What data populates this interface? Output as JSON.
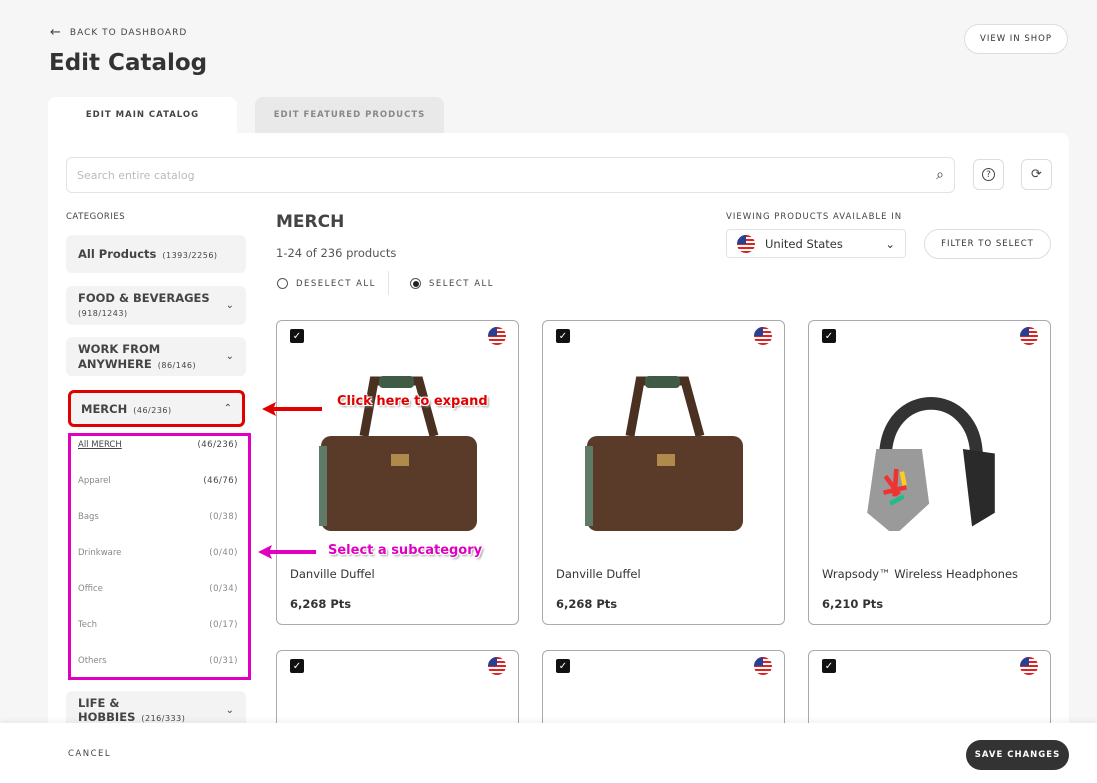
{
  "header": {
    "back_label": "BACK TO DASHBOARD",
    "title": "Edit Catalog",
    "view_in_shop": "VIEW IN SHOP"
  },
  "tabs": [
    {
      "label": "EDIT MAIN CATALOG",
      "active": true
    },
    {
      "label": "EDIT FEATURED PRODUCTS",
      "active": false
    }
  ],
  "search": {
    "placeholder": "Search entire catalog"
  },
  "sidebar": {
    "heading": "CATEGORIES",
    "categories": [
      {
        "label": "All Products",
        "count": "(1393/2256)"
      },
      {
        "label": "FOOD & BEVERAGES",
        "count": "(918/1243)"
      },
      {
        "label": "WORK FROM ANYWHERE",
        "count": "(86/146)"
      },
      {
        "label": "MERCH",
        "count": "(46/236)"
      },
      {
        "label": "LIFE & HOBBIES",
        "count": "(216/333)"
      }
    ],
    "subcategories": [
      {
        "label": "All MERCH",
        "count": "(46/236)"
      },
      {
        "label": "Apparel",
        "count": "(46/76)"
      },
      {
        "label": "Bags",
        "count": "(0/38)"
      },
      {
        "label": "Drinkware",
        "count": "(0/40)"
      },
      {
        "label": "Office",
        "count": "(0/34)"
      },
      {
        "label": "Tech",
        "count": "(0/17)"
      },
      {
        "label": "Others",
        "count": "(0/31)"
      }
    ]
  },
  "main": {
    "title": "MERCH",
    "count": "1-24 of 236 products",
    "deselect_all": "DESELECT ALL",
    "select_all": "SELECT ALL",
    "viewing_label": "VIEWING PRODUCTS AVAILABLE IN",
    "country": "United States",
    "filter_button": "FILTER TO SELECT",
    "products": [
      {
        "name": "Danville Duffel",
        "points": "6,268 Pts",
        "checked": true
      },
      {
        "name": "Danville Duffel",
        "points": "6,268 Pts",
        "checked": true
      },
      {
        "name": "Wrapsody™ Wireless Headphones",
        "points": "6,210 Pts",
        "checked": true
      }
    ]
  },
  "annotations": {
    "expand": "Click here to expand",
    "subcategory": "Select a subcategory",
    "colors": {
      "red": "#e00000",
      "magenta": "#e000c0"
    }
  },
  "footer": {
    "cancel": "CANCEL",
    "save": "SAVE CHANGES"
  }
}
